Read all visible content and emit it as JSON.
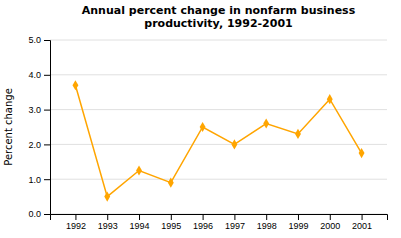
{
  "chart_data": {
    "type": "line",
    "title": "Annual percent change in nonfarm business\nproductivity, 1992-2001",
    "y_label": "Percent change",
    "x": [
      1992,
      1993,
      1994,
      1995,
      1996,
      1997,
      1998,
      1999,
      2000,
      2001
    ],
    "values": [
      3.7,
      0.5,
      1.25,
      0.9,
      2.5,
      2.0,
      2.6,
      2.3,
      3.3,
      1.75
    ],
    "color": "#FFA500",
    "marker": "diamond",
    "xlim": [
      1991.2,
      2001.8
    ],
    "xticks": [
      1992,
      1993,
      1994,
      1995,
      1996,
      1997,
      1998,
      1999,
      2000,
      2001
    ],
    "ylim": [
      0.0,
      5.0
    ],
    "yticks": [
      {
        "value": 0.0,
        "label": "0.0"
      },
      {
        "value": 1.0,
        "label": "1.0"
      },
      {
        "value": 2.0,
        "label": "2.0"
      },
      {
        "value": 3.0,
        "label": "3.0"
      },
      {
        "value": 4.0,
        "label": "4.0"
      },
      {
        "value": 5.0,
        "label": "5.0"
      }
    ],
    "grid": true
  }
}
